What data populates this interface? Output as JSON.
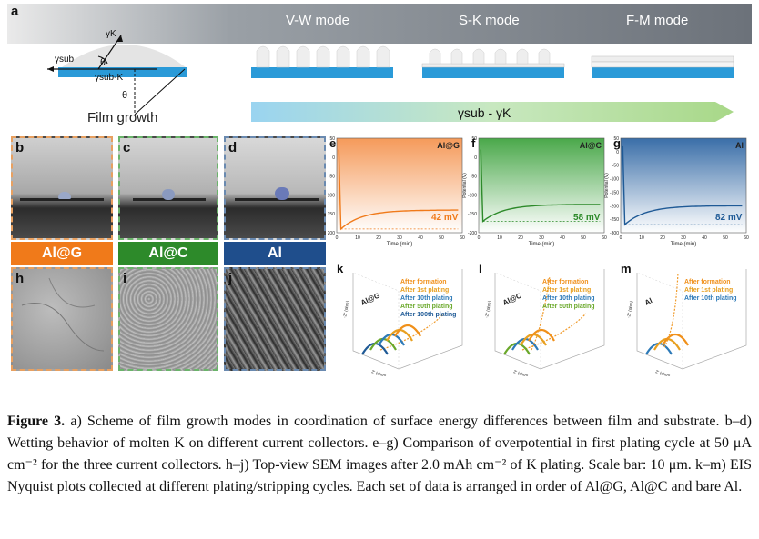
{
  "panel_a": {
    "letter": "a",
    "gamma_k": "γK",
    "gamma_sub": "γsub",
    "gamma_sub_k": "γsub-K",
    "theta": "θ",
    "film_growth": "Film growth",
    "modes": [
      "V-W mode",
      "S-K mode",
      "F-M mode"
    ],
    "arrow_label": "γsub - γK"
  },
  "photo_panels": [
    {
      "letter": "b",
      "tag": "Al@G",
      "tag_color": "#f07a1a",
      "border": "#e8a060"
    },
    {
      "letter": "c",
      "tag": "Al@C",
      "tag_color": "#2d8a2a",
      "border": "#6ab46a"
    },
    {
      "letter": "d",
      "tag": "Al",
      "tag_color": "#1f4e8c",
      "border": "#6a8ab0"
    }
  ],
  "sem_panels": [
    {
      "letter": "h"
    },
    {
      "letter": "i"
    },
    {
      "letter": "j"
    }
  ],
  "voltage_panels": [
    {
      "letter": "e",
      "name": "Al@G",
      "overpotential": "42 mV",
      "color": "#f07a1a",
      "bg_top": "#f59a5a",
      "bg_bottom": "#ffffff"
    },
    {
      "letter": "f",
      "name": "Al@C",
      "overpotential": "58 mV",
      "color": "#2d8a2a",
      "bg_top": "#4aa84a",
      "bg_bottom": "#ffffff"
    },
    {
      "letter": "g",
      "name": "Al",
      "overpotential": "82 mV",
      "color": "#1f5a96",
      "bg_top": "#3a6ea8",
      "bg_bottom": "#ffffff"
    }
  ],
  "voltage_axis": {
    "ylabel": "Potential (V)",
    "xlabel": "Time (min)",
    "xticks": [
      "0",
      "10",
      "20",
      "30",
      "40",
      "50",
      "60"
    ],
    "yticks_eg": [
      "50",
      "0",
      "-50",
      "-100",
      "-150",
      "-200"
    ],
    "yticks_g": [
      "50",
      "0",
      "-50",
      "-100",
      "-150",
      "-200",
      "-250",
      "-300"
    ]
  },
  "eis_panels": [
    {
      "letter": "k",
      "name": "Al@G",
      "legend": [
        "After formation",
        "After 1st plating",
        "After 10th plating",
        "After 50th plating",
        "After 100th plating"
      ]
    },
    {
      "letter": "l",
      "name": "Al@C",
      "legend": [
        "After formation",
        "After 1st plating",
        "After 10th plating",
        "After 50th plating"
      ]
    },
    {
      "letter": "m",
      "name": "Al",
      "legend": [
        "After formation",
        "After 1st plating",
        "After 10th plating"
      ]
    }
  ],
  "eis_legend_colors": [
    "#f0901a",
    "#e8a020",
    "#2d7ab8",
    "#6aa82a",
    "#1f5a96"
  ],
  "eis_axis": {
    "zreal": "Z' (ohm)",
    "zimag": "-Z'' (ohm)"
  },
  "caption": {
    "label": "Figure 3.",
    "text": "a) Scheme of film growth modes in coordination of surface energy differences between film and substrate. b–d) Wetting behavior of molten K on different current collectors. e–g) Comparison of overpotential in first plating cycle at 50 μA cm⁻² for the three current collectors. h–j) Top-view SEM images after 2.0 mAh cm⁻² of K plating. Scale bar: 10 μm. k–m) EIS Nyquist plots collected at different plating/stripping cycles. Each set of data is arranged in order of Al@G, Al@C and bare Al."
  }
}
